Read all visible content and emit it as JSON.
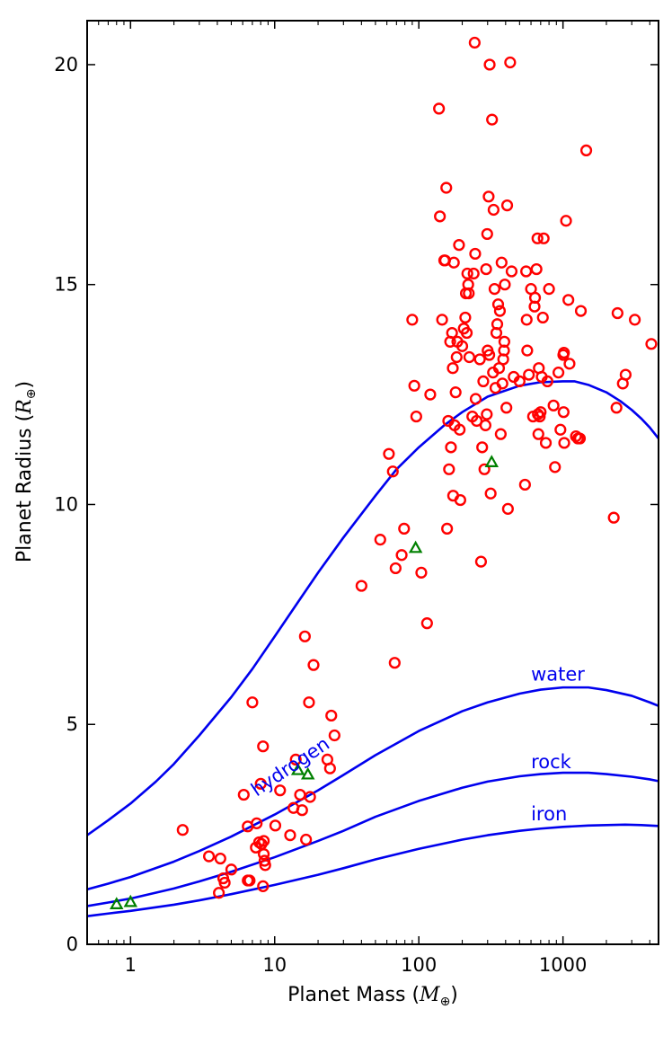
{
  "chart_data": {
    "type": "scatter",
    "xscale": "log",
    "xlim": [
      0.5,
      4600
    ],
    "ylim": [
      0,
      21
    ],
    "xlabel": {
      "prefix": "Planet Mass (",
      "symbol": "M",
      "sub": "⊕",
      "suffix": ")"
    },
    "ylabel": {
      "prefix": "Planet Radius (",
      "symbol": "R",
      "sub": "⊕",
      "suffix": ")"
    },
    "x_ticks": [
      {
        "value": 1,
        "label": "1"
      },
      {
        "value": 10,
        "label": "10"
      },
      {
        "value": 100,
        "label": "100"
      },
      {
        "value": 1000,
        "label": "1000"
      }
    ],
    "y_ticks": [
      {
        "value": 0,
        "label": "0"
      },
      {
        "value": 5,
        "label": "5"
      },
      {
        "value": 10,
        "label": "10"
      },
      {
        "value": 15,
        "label": "15"
      },
      {
        "value": 20,
        "label": "20"
      }
    ],
    "colors": {
      "circles": "#ff0000",
      "triangles": "#008000",
      "curves": "#0000ee"
    },
    "curves": [
      {
        "name": "hydrogen",
        "label": "hydrogen",
        "label_pos": {
          "x": 7.5,
          "y": 3.35
        },
        "label_angle": -34,
        "points": [
          [
            0.5,
            2.48
          ],
          [
            0.7,
            2.82
          ],
          [
            1,
            3.2
          ],
          [
            1.5,
            3.7
          ],
          [
            2,
            4.1
          ],
          [
            3,
            4.75
          ],
          [
            5,
            5.62
          ],
          [
            7,
            6.26
          ],
          [
            10,
            7
          ],
          [
            15,
            7.85
          ],
          [
            20,
            8.45
          ],
          [
            30,
            9.25
          ],
          [
            50,
            10.2
          ],
          [
            70,
            10.8
          ],
          [
            100,
            11.3
          ],
          [
            150,
            11.8
          ],
          [
            200,
            12.1
          ],
          [
            300,
            12.45
          ],
          [
            500,
            12.7
          ],
          [
            700,
            12.78
          ],
          [
            1000,
            12.8
          ],
          [
            1200,
            12.8
          ],
          [
            1500,
            12.72
          ],
          [
            2000,
            12.55
          ],
          [
            2500,
            12.35
          ],
          [
            3000,
            12.15
          ],
          [
            3500,
            11.95
          ],
          [
            4000,
            11.75
          ],
          [
            4600,
            11.5
          ]
        ]
      },
      {
        "name": "water",
        "label": "water",
        "label_pos": {
          "x": 600,
          "y": 6.0
        },
        "label_angle": 0,
        "points": [
          [
            0.5,
            1.25
          ],
          [
            0.7,
            1.38
          ],
          [
            1,
            1.53
          ],
          [
            2,
            1.88
          ],
          [
            3,
            2.12
          ],
          [
            5,
            2.45
          ],
          [
            10,
            2.95
          ],
          [
            20,
            3.5
          ],
          [
            30,
            3.85
          ],
          [
            50,
            4.3
          ],
          [
            100,
            4.85
          ],
          [
            200,
            5.3
          ],
          [
            300,
            5.5
          ],
          [
            500,
            5.7
          ],
          [
            700,
            5.79
          ],
          [
            1000,
            5.84
          ],
          [
            1500,
            5.84
          ],
          [
            2000,
            5.78
          ],
          [
            3000,
            5.65
          ],
          [
            4000,
            5.5
          ],
          [
            4600,
            5.42
          ]
        ]
      },
      {
        "name": "rock",
        "label": "rock",
        "label_pos": {
          "x": 600,
          "y": 4.0
        },
        "label_angle": 0,
        "points": [
          [
            0.5,
            0.87
          ],
          [
            0.7,
            0.95
          ],
          [
            1,
            1.04
          ],
          [
            2,
            1.27
          ],
          [
            3,
            1.43
          ],
          [
            5,
            1.65
          ],
          [
            10,
            1.98
          ],
          [
            20,
            2.35
          ],
          [
            30,
            2.58
          ],
          [
            50,
            2.9
          ],
          [
            100,
            3.26
          ],
          [
            200,
            3.56
          ],
          [
            300,
            3.7
          ],
          [
            500,
            3.82
          ],
          [
            700,
            3.87
          ],
          [
            1000,
            3.9
          ],
          [
            1500,
            3.9
          ],
          [
            2000,
            3.87
          ],
          [
            3000,
            3.81
          ],
          [
            4000,
            3.75
          ],
          [
            4600,
            3.71
          ]
        ]
      },
      {
        "name": "iron",
        "label": "iron",
        "label_pos": {
          "x": 600,
          "y": 2.82
        },
        "label_angle": 0,
        "points": [
          [
            0.5,
            0.64
          ],
          [
            0.7,
            0.7
          ],
          [
            1,
            0.76
          ],
          [
            2,
            0.9
          ],
          [
            3,
            1.0
          ],
          [
            5,
            1.14
          ],
          [
            10,
            1.35
          ],
          [
            20,
            1.58
          ],
          [
            30,
            1.73
          ],
          [
            50,
            1.93
          ],
          [
            100,
            2.17
          ],
          [
            200,
            2.38
          ],
          [
            300,
            2.48
          ],
          [
            500,
            2.58
          ],
          [
            700,
            2.63
          ],
          [
            1000,
            2.67
          ],
          [
            1500,
            2.7
          ],
          [
            2000,
            2.71
          ],
          [
            2700,
            2.72
          ],
          [
            3500,
            2.71
          ],
          [
            4600,
            2.69
          ]
        ]
      }
    ],
    "series": [
      {
        "name": "circles",
        "marker": "circle",
        "points": [
          [
            2.3,
            2.6
          ],
          [
            3.5,
            2.0
          ],
          [
            4.2,
            1.95
          ],
          [
            4.1,
            1.17
          ],
          [
            4.4,
            1.5
          ],
          [
            4.5,
            1.4
          ],
          [
            5.0,
            1.7
          ],
          [
            6.1,
            3.4
          ],
          [
            6.5,
            2.68
          ],
          [
            6.5,
            1.45
          ],
          [
            6.7,
            1.45
          ],
          [
            7.0,
            5.5
          ],
          [
            7.4,
            2.2
          ],
          [
            7.5,
            2.75
          ],
          [
            7.8,
            2.32
          ],
          [
            8.0,
            3.65
          ],
          [
            8.1,
            2.28
          ],
          [
            8.3,
            1.32
          ],
          [
            8.3,
            4.5
          ],
          [
            8.4,
            2.35
          ],
          [
            8.4,
            2.05
          ],
          [
            8.6,
            1.8
          ],
          [
            8.5,
            1.9
          ],
          [
            10.1,
            2.7
          ],
          [
            10.9,
            3.5
          ],
          [
            12.8,
            2.48
          ],
          [
            13.5,
            3.1
          ],
          [
            14.0,
            4.2
          ],
          [
            15.0,
            3.4
          ],
          [
            15.5,
            3.05
          ],
          [
            16.2,
            7.0
          ],
          [
            16.5,
            2.38
          ],
          [
            17.3,
            5.5
          ],
          [
            17.6,
            3.35
          ],
          [
            18.6,
            6.35
          ],
          [
            23.2,
            4.2
          ],
          [
            24.2,
            4.0
          ],
          [
            24.7,
            5.2
          ],
          [
            26.0,
            4.75
          ],
          [
            40,
            8.15
          ],
          [
            54,
            9.2
          ],
          [
            62,
            11.15
          ],
          [
            66,
            10.75
          ],
          [
            68,
            6.4
          ],
          [
            69,
            8.55
          ],
          [
            76,
            8.85
          ],
          [
            79,
            9.45
          ],
          [
            90,
            14.2
          ],
          [
            93,
            12.7
          ],
          [
            96,
            12.0
          ],
          [
            104,
            8.45
          ],
          [
            114,
            7.3
          ],
          [
            120,
            12.5
          ],
          [
            138,
            19.0
          ],
          [
            140,
            16.55
          ],
          [
            145,
            14.2
          ],
          [
            150,
            15.55
          ],
          [
            152,
            15.55
          ],
          [
            155,
            17.2
          ],
          [
            157,
            9.45
          ],
          [
            160,
            11.9
          ],
          [
            162,
            10.8
          ],
          [
            165,
            13.7
          ],
          [
            167,
            11.3
          ],
          [
            170,
            13.9
          ],
          [
            172,
            13.1
          ],
          [
            173,
            10.2
          ],
          [
            175,
            15.5
          ],
          [
            177,
            11.8
          ],
          [
            180,
            12.55
          ],
          [
            183,
            13.35
          ],
          [
            185,
            13.7
          ],
          [
            190,
            15.9
          ],
          [
            192,
            11.7
          ],
          [
            194,
            10.1
          ],
          [
            200,
            13.6
          ],
          [
            205,
            14.0
          ],
          [
            210,
            14.25
          ],
          [
            212,
            14.8
          ],
          [
            215,
            13.9
          ],
          [
            217,
            15.25
          ],
          [
            220,
            15.0
          ],
          [
            222,
            14.8
          ],
          [
            224,
            13.35
          ],
          [
            235,
            12.0
          ],
          [
            240,
            15.25
          ],
          [
            244,
            20.5
          ],
          [
            246,
            15.7
          ],
          [
            248,
            12.4
          ],
          [
            252,
            11.9
          ],
          [
            265,
            13.3
          ],
          [
            270,
            8.7
          ],
          [
            275,
            11.3
          ],
          [
            280,
            12.8
          ],
          [
            285,
            10.8
          ],
          [
            290,
            11.8
          ],
          [
            293,
            15.35
          ],
          [
            296,
            12.05
          ],
          [
            298,
            16.15
          ],
          [
            300,
            13.5
          ],
          [
            305,
            17.0
          ],
          [
            308,
            13.4
          ],
          [
            310,
            20.0
          ],
          [
            315,
            10.25
          ],
          [
            322,
            18.75
          ],
          [
            327,
            13.0
          ],
          [
            330,
            16.7
          ],
          [
            335,
            14.9
          ],
          [
            340,
            12.65
          ],
          [
            345,
            13.9
          ],
          [
            350,
            14.1
          ],
          [
            355,
            14.55
          ],
          [
            360,
            13.1
          ],
          [
            365,
            14.4
          ],
          [
            370,
            11.6
          ],
          [
            375,
            15.5
          ],
          [
            380,
            12.75
          ],
          [
            385,
            13.3
          ],
          [
            390,
            13.5
          ],
          [
            392,
            13.7
          ],
          [
            395,
            15.0
          ],
          [
            405,
            12.2
          ],
          [
            410,
            16.8
          ],
          [
            415,
            9.9
          ],
          [
            430,
            20.05
          ],
          [
            440,
            15.3
          ],
          [
            455,
            12.9
          ],
          [
            500,
            12.8
          ],
          [
            545,
            10.45
          ],
          [
            555,
            15.3
          ],
          [
            560,
            14.2
          ],
          [
            565,
            13.5
          ],
          [
            580,
            12.95
          ],
          [
            600,
            14.9
          ],
          [
            620,
            12.0
          ],
          [
            635,
            14.5
          ],
          [
            640,
            14.7
          ],
          [
            655,
            15.35
          ],
          [
            665,
            16.05
          ],
          [
            670,
            12.05
          ],
          [
            675,
            11.6
          ],
          [
            680,
            13.1
          ],
          [
            690,
            12.0
          ],
          [
            700,
            12.1
          ],
          [
            712,
            12.9
          ],
          [
            725,
            14.25
          ],
          [
            735,
            16.05
          ],
          [
            760,
            11.4
          ],
          [
            780,
            12.8
          ],
          [
            800,
            14.9
          ],
          [
            860,
            12.25
          ],
          [
            880,
            10.85
          ],
          [
            930,
            13.0
          ],
          [
            960,
            11.7
          ],
          [
            1005,
            13.4
          ],
          [
            1010,
            12.1
          ],
          [
            1015,
            13.45
          ],
          [
            1020,
            11.4
          ],
          [
            1050,
            16.45
          ],
          [
            1090,
            14.65
          ],
          [
            1110,
            13.2
          ],
          [
            1230,
            11.55
          ],
          [
            1270,
            11.5
          ],
          [
            1310,
            11.5
          ],
          [
            1330,
            14.4
          ],
          [
            1450,
            18.05
          ],
          [
            2250,
            9.7
          ],
          [
            2350,
            12.2
          ],
          [
            2390,
            14.35
          ],
          [
            2600,
            12.75
          ],
          [
            2720,
            12.95
          ],
          [
            3150,
            14.2
          ],
          [
            4100,
            13.65
          ]
        ]
      },
      {
        "name": "triangles",
        "marker": "triangle",
        "points": [
          [
            0.8,
            0.9
          ],
          [
            1.0,
            0.95
          ],
          [
            14.5,
            3.95
          ],
          [
            17.0,
            3.85
          ],
          [
            95,
            9.0
          ],
          [
            320,
            10.95
          ]
        ]
      }
    ]
  }
}
